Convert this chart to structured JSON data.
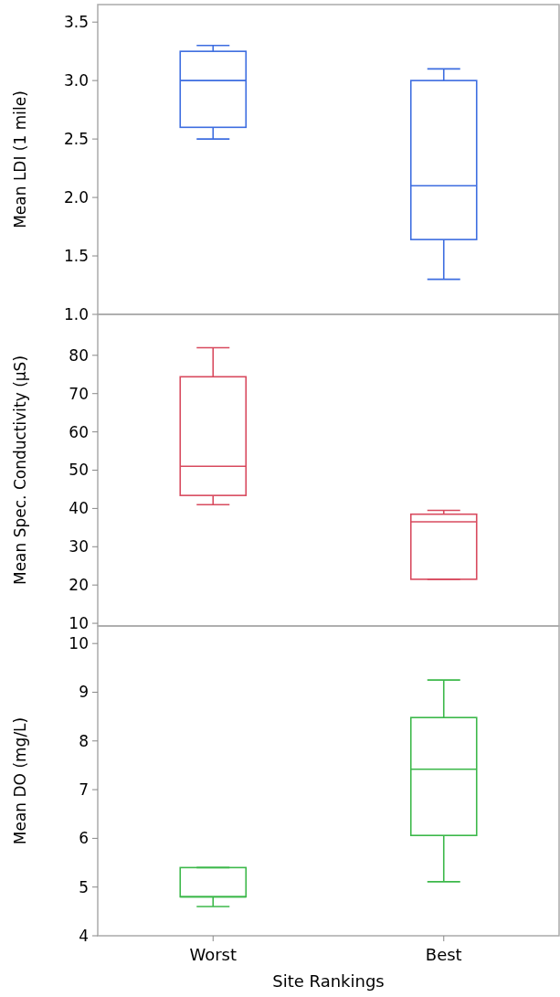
{
  "chart_data": [
    {
      "type": "box",
      "categories": [
        "Worst",
        "Best"
      ],
      "ylabel": "Mean LDI (1 mile)",
      "ylim": [
        1.0,
        3.65
      ],
      "yticks": [
        {
          "value": 1,
          "label": "1.0"
        },
        1.5,
        {
          "value": 2,
          "label": "2.0"
        },
        2.5,
        {
          "value": 3,
          "label": "3.0"
        },
        3.5
      ],
      "tick_labels": "y",
      "series": [
        {
          "color": "#3d6de0",
          "boxes": [
            {
              "low": 2.5,
              "q1": 2.6,
              "median": 3.0,
              "q3": 3.25,
              "high": 3.3
            },
            {
              "low": 1.3,
              "q1": 1.64,
              "median": 2.1,
              "q3": 3.0,
              "high": 3.1
            }
          ]
        }
      ]
    },
    {
      "type": "box",
      "categories": [
        "Worst",
        "Best"
      ],
      "ylabel": "Mean Spec. Conductivity (µS)",
      "ylim": [
        9.3,
        90.7
      ],
      "yticks": [
        10,
        20,
        30,
        40,
        50,
        60,
        70,
        80
      ],
      "tick_labels": "y",
      "series": [
        {
          "color": "#d84a5e",
          "boxes": [
            {
              "low": 41,
              "q1": 43.4,
              "median": 51,
              "q3": 74.4,
              "high": 82
            },
            {
              "low": 21.5,
              "q1": 21.5,
              "median": 36.5,
              "q3": 38.5,
              "high": 39.5
            }
          ]
        }
      ]
    },
    {
      "type": "box",
      "categories": [
        "Worst",
        "Best"
      ],
      "xlabel": "Site Rankings",
      "ylabel": "Mean DO (mg/L)",
      "ylim": [
        4,
        10.36
      ],
      "yticks": [
        4,
        5,
        6,
        7,
        8,
        9,
        10
      ],
      "series": [
        {
          "color": "#3cb84a",
          "boxes": [
            {
              "low": 4.6,
              "q1": 4.8,
              "median": 4.8,
              "q3": 5.4,
              "high": 5.4
            },
            {
              "low": 5.11,
              "q1": 6.06,
              "median": 7.42,
              "q3": 8.48,
              "high": 9.25
            }
          ]
        }
      ]
    }
  ]
}
